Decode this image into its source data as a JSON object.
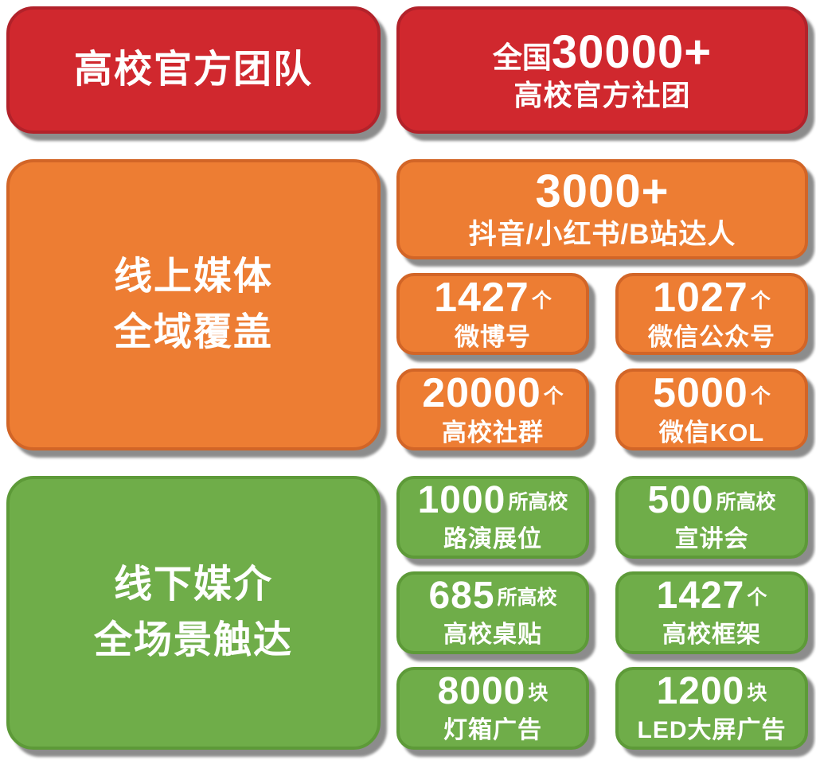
{
  "colors": {
    "background": "#ffffff",
    "red_fill": "#d0282e",
    "red_border": "#b2222a",
    "orange_fill": "#ed7d33",
    "orange_border": "#d26527",
    "green_fill": "#6fad49",
    "green_border": "#5d9a38",
    "text": "#ffffff"
  },
  "official_team": {
    "headline": "高校官方团队",
    "stat_prefix": "全国",
    "stat_value": "30000+",
    "stat_label": "高校官方社团"
  },
  "online_media": {
    "headline_line1": "线上媒体",
    "headline_line2": "全域覆盖",
    "wide_stat": {
      "value": "3000+",
      "label": "抖音/小红书/B站达人"
    },
    "stats": [
      {
        "value": "1427",
        "unit": "个",
        "label": "微博号"
      },
      {
        "value": "1027",
        "unit": "个",
        "label": "微信公众号"
      },
      {
        "value": "20000",
        "unit": "个",
        "label": "高校社群"
      },
      {
        "value": "5000",
        "unit": "个",
        "label": "微信KOL"
      }
    ]
  },
  "offline_media": {
    "headline_line1": "线下媒介",
    "headline_line2": "全场景触达",
    "stats": [
      {
        "value": "1000",
        "unit": "所高校",
        "label": "路演展位"
      },
      {
        "value": "500",
        "unit": "所高校",
        "label": "宣讲会"
      },
      {
        "value": "685",
        "unit": "所高校",
        "label": "高校桌贴"
      },
      {
        "value": "1427",
        "unit": "个",
        "label": "高校框架"
      },
      {
        "value": "8000",
        "unit": "块",
        "label": "灯箱广告"
      },
      {
        "value": "1200",
        "unit": "块",
        "label": "LED大屏广告"
      }
    ]
  }
}
